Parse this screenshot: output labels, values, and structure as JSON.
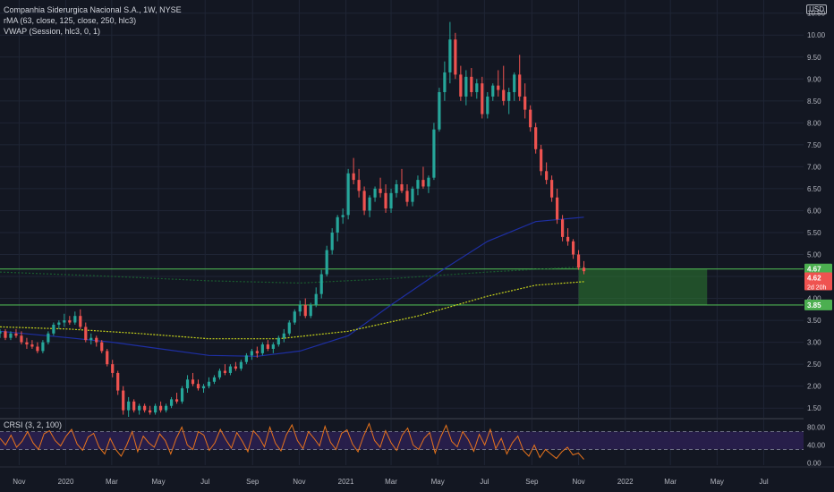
{
  "header": {
    "title": "Companhia Siderurgica Nacional S.A., 1W, NYSE",
    "indicator_rma": "rMA (63, close, 125, close, 250, hlc3)",
    "indicator_vwap": "VWAP (Session, hlc3, 0, 1)",
    "currency": "USD"
  },
  "crsi_panel": {
    "label": "CRSI (3, 2, 100)",
    "yticks": [
      "80.00",
      "40.00",
      "0.00"
    ],
    "upper_band": 70,
    "lower_band": 30
  },
  "price_labels": {
    "upper_level": "4.67",
    "last_price": "4.62",
    "countdown": "2d 20h",
    "lower_level": "3.85"
  },
  "colors": {
    "background": "#131722",
    "grid": "#1f2535",
    "up": "#26a69a",
    "down": "#ef5350",
    "level_line": "#4caf50",
    "zone_fill": "#2e7d32",
    "rma_fast": "#1e2fa3",
    "rma_slow": "#c6d31b",
    "crsi_line": "#e8731c",
    "crsi_band_fill": "#2a1f4f"
  },
  "chart_data": {
    "type": "candlestick",
    "title": "Companhia Siderurgica Nacional S.A., 1W, NYSE",
    "y_axis_ticks": [
      "10.50",
      "10.00",
      "9.50",
      "9.00",
      "8.50",
      "8.00",
      "7.50",
      "7.00",
      "6.50",
      "6.00",
      "5.50",
      "5.00",
      "4.50",
      "4.00",
      "3.50",
      "3.00",
      "2.50",
      "2.00",
      "1.50"
    ],
    "ylim": [
      1.3,
      10.8
    ],
    "x_axis_ticks": [
      "Nov",
      "2020",
      "Mar",
      "May",
      "Jul",
      "Sep",
      "Nov",
      "2021",
      "Mar",
      "May",
      "Jul",
      "Sep",
      "Nov",
      "2022",
      "Mar",
      "May",
      "Jul"
    ],
    "xlim": [
      "2019-10-07",
      "2022-08-22"
    ],
    "candles": [
      [
        "2019-10-07",
        3.2,
        3.3,
        3.1,
        3.25
      ],
      [
        "2019-10-14",
        3.25,
        3.3,
        3.05,
        3.1
      ],
      [
        "2019-10-21",
        3.1,
        3.25,
        3.05,
        3.2
      ],
      [
        "2019-10-28",
        3.2,
        3.3,
        3.1,
        3.15
      ],
      [
        "2019-11-04",
        3.15,
        3.25,
        2.95,
        3.0
      ],
      [
        "2019-11-11",
        3.0,
        3.1,
        2.85,
        2.95
      ],
      [
        "2019-11-18",
        2.95,
        3.05,
        2.85,
        2.9
      ],
      [
        "2019-11-25",
        2.9,
        3.0,
        2.75,
        2.8
      ],
      [
        "2019-12-02",
        2.8,
        3.05,
        2.75,
        3.0
      ],
      [
        "2019-12-09",
        3.0,
        3.25,
        2.95,
        3.2
      ],
      [
        "2019-12-16",
        3.2,
        3.45,
        3.15,
        3.4
      ],
      [
        "2019-12-23",
        3.4,
        3.5,
        3.3,
        3.45
      ],
      [
        "2019-12-30",
        3.45,
        3.65,
        3.35,
        3.5
      ],
      [
        "2020-01-06",
        3.5,
        3.6,
        3.4,
        3.45
      ],
      [
        "2020-01-13",
        3.45,
        3.7,
        3.4,
        3.6
      ],
      [
        "2020-01-20",
        3.6,
        3.75,
        3.3,
        3.35
      ],
      [
        "2020-01-27",
        3.35,
        3.45,
        3.0,
        3.05
      ],
      [
        "2020-02-03",
        3.05,
        3.2,
        2.95,
        3.1
      ],
      [
        "2020-02-10",
        3.1,
        3.15,
        2.9,
        3.0
      ],
      [
        "2020-02-17",
        3.0,
        3.05,
        2.75,
        2.8
      ],
      [
        "2020-02-24",
        2.8,
        2.85,
        2.45,
        2.5
      ],
      [
        "2020-03-02",
        2.5,
        2.6,
        2.2,
        2.3
      ],
      [
        "2020-03-09",
        2.3,
        2.35,
        1.8,
        1.9
      ],
      [
        "2020-03-16",
        1.9,
        2.0,
        1.35,
        1.45
      ],
      [
        "2020-03-23",
        1.45,
        1.75,
        1.3,
        1.65
      ],
      [
        "2020-03-30",
        1.65,
        1.7,
        1.4,
        1.45
      ],
      [
        "2020-04-06",
        1.45,
        1.6,
        1.35,
        1.55
      ],
      [
        "2020-04-13",
        1.55,
        1.6,
        1.4,
        1.45
      ],
      [
        "2020-04-20",
        1.45,
        1.55,
        1.35,
        1.4
      ],
      [
        "2020-04-27",
        1.4,
        1.6,
        1.35,
        1.55
      ],
      [
        "2020-05-04",
        1.55,
        1.65,
        1.4,
        1.45
      ],
      [
        "2020-05-11",
        1.45,
        1.6,
        1.4,
        1.55
      ],
      [
        "2020-05-18",
        1.55,
        1.75,
        1.5,
        1.7
      ],
      [
        "2020-05-25",
        1.7,
        1.85,
        1.6,
        1.65
      ],
      [
        "2020-06-01",
        1.65,
        2.0,
        1.6,
        1.95
      ],
      [
        "2020-06-08",
        1.95,
        2.25,
        1.85,
        2.15
      ],
      [
        "2020-06-15",
        2.15,
        2.3,
        2.0,
        2.05
      ],
      [
        "2020-06-22",
        2.05,
        2.15,
        1.9,
        1.95
      ],
      [
        "2020-06-29",
        1.95,
        2.05,
        1.85,
        2.0
      ],
      [
        "2020-07-06",
        2.0,
        2.2,
        1.95,
        2.1
      ],
      [
        "2020-07-13",
        2.1,
        2.25,
        2.05,
        2.2
      ],
      [
        "2020-07-20",
        2.2,
        2.4,
        2.15,
        2.35
      ],
      [
        "2020-07-27",
        2.35,
        2.5,
        2.25,
        2.3
      ],
      [
        "2020-08-03",
        2.3,
        2.5,
        2.25,
        2.45
      ],
      [
        "2020-08-10",
        2.45,
        2.55,
        2.35,
        2.4
      ],
      [
        "2020-08-17",
        2.4,
        2.6,
        2.35,
        2.55
      ],
      [
        "2020-08-24",
        2.55,
        2.75,
        2.5,
        2.7
      ],
      [
        "2020-08-31",
        2.7,
        2.85,
        2.6,
        2.8
      ],
      [
        "2020-09-07",
        2.8,
        2.9,
        2.65,
        2.75
      ],
      [
        "2020-09-14",
        2.75,
        3.0,
        2.7,
        2.95
      ],
      [
        "2020-09-21",
        2.95,
        3.05,
        2.8,
        2.85
      ],
      [
        "2020-09-28",
        2.85,
        3.0,
        2.75,
        2.95
      ],
      [
        "2020-10-05",
        2.95,
        3.15,
        2.9,
        3.1
      ],
      [
        "2020-10-12",
        3.1,
        3.3,
        3.0,
        3.2
      ],
      [
        "2020-10-19",
        3.2,
        3.5,
        3.15,
        3.45
      ],
      [
        "2020-10-26",
        3.45,
        3.75,
        3.4,
        3.7
      ],
      [
        "2020-11-02",
        3.7,
        3.95,
        3.6,
        3.85
      ],
      [
        "2020-11-09",
        3.85,
        4.0,
        3.55,
        3.6
      ],
      [
        "2020-11-16",
        3.6,
        3.9,
        3.55,
        3.85
      ],
      [
        "2020-11-23",
        3.85,
        4.25,
        3.8,
        4.1
      ],
      [
        "2020-11-30",
        4.1,
        4.65,
        4.0,
        4.55
      ],
      [
        "2020-12-07",
        4.55,
        5.2,
        4.5,
        5.1
      ],
      [
        "2020-12-14",
        5.1,
        5.6,
        5.0,
        5.5
      ],
      [
        "2020-12-21",
        5.5,
        5.9,
        5.3,
        5.85
      ],
      [
        "2020-12-28",
        5.85,
        6.05,
        5.7,
        5.9
      ],
      [
        "2021-01-04",
        5.9,
        6.95,
        5.8,
        6.85
      ],
      [
        "2021-01-11",
        6.85,
        7.2,
        6.6,
        6.7
      ],
      [
        "2021-01-18",
        6.7,
        6.95,
        6.3,
        6.45
      ],
      [
        "2021-01-25",
        6.45,
        6.55,
        5.9,
        6.0
      ],
      [
        "2021-02-01",
        6.0,
        6.35,
        5.85,
        6.3
      ],
      [
        "2021-02-08",
        6.3,
        6.55,
        6.2,
        6.5
      ],
      [
        "2021-02-15",
        6.5,
        6.75,
        6.3,
        6.4
      ],
      [
        "2021-02-22",
        6.4,
        6.6,
        5.95,
        6.05
      ],
      [
        "2021-03-01",
        6.05,
        6.5,
        5.95,
        6.4
      ],
      [
        "2021-03-08",
        6.4,
        6.7,
        6.3,
        6.6
      ],
      [
        "2021-03-15",
        6.6,
        6.95,
        6.4,
        6.45
      ],
      [
        "2021-03-22",
        6.45,
        6.6,
        6.1,
        6.2
      ],
      [
        "2021-03-29",
        6.2,
        6.55,
        6.1,
        6.5
      ],
      [
        "2021-04-05",
        6.5,
        6.8,
        6.35,
        6.7
      ],
      [
        "2021-04-12",
        6.7,
        7.0,
        6.5,
        6.55
      ],
      [
        "2021-04-19",
        6.55,
        6.8,
        6.4,
        6.75
      ],
      [
        "2021-04-26",
        6.75,
        8.0,
        6.7,
        7.85
      ],
      [
        "2021-05-03",
        7.85,
        8.8,
        7.8,
        8.7
      ],
      [
        "2021-05-10",
        8.7,
        9.4,
        8.5,
        9.15
      ],
      [
        "2021-05-17",
        9.15,
        10.3,
        8.9,
        9.9
      ],
      [
        "2021-05-24",
        9.9,
        10.05,
        9.0,
        9.1
      ],
      [
        "2021-05-31",
        9.1,
        9.3,
        8.5,
        8.6
      ],
      [
        "2021-06-07",
        8.6,
        9.2,
        8.4,
        9.05
      ],
      [
        "2021-06-14",
        9.05,
        9.25,
        8.6,
        8.7
      ],
      [
        "2021-06-21",
        8.7,
        9.0,
        8.55,
        8.9
      ],
      [
        "2021-06-28",
        8.9,
        9.05,
        8.1,
        8.2
      ],
      [
        "2021-07-05",
        8.2,
        8.7,
        8.1,
        8.6
      ],
      [
        "2021-07-12",
        8.6,
        8.9,
        8.5,
        8.85
      ],
      [
        "2021-07-19",
        8.85,
        9.2,
        8.6,
        8.75
      ],
      [
        "2021-07-26",
        8.75,
        9.3,
        8.4,
        8.5
      ],
      [
        "2021-08-02",
        8.5,
        8.8,
        8.2,
        8.7
      ],
      [
        "2021-08-09",
        8.7,
        9.15,
        8.5,
        9.1
      ],
      [
        "2021-08-16",
        9.1,
        9.55,
        8.5,
        8.6
      ],
      [
        "2021-08-23",
        8.6,
        8.9,
        8.1,
        8.3
      ],
      [
        "2021-08-30",
        8.3,
        8.4,
        7.8,
        7.9
      ],
      [
        "2021-09-06",
        7.9,
        8.0,
        7.3,
        7.4
      ],
      [
        "2021-09-13",
        7.4,
        7.5,
        6.8,
        6.9
      ],
      [
        "2021-09-20",
        6.9,
        7.1,
        6.6,
        6.7
      ],
      [
        "2021-09-27",
        6.7,
        6.8,
        6.2,
        6.3
      ],
      [
        "2021-10-04",
        6.3,
        6.5,
        5.7,
        5.8
      ],
      [
        "2021-10-11",
        5.8,
        5.9,
        5.3,
        5.4
      ],
      [
        "2021-10-18",
        5.4,
        5.6,
        5.2,
        5.3
      ],
      [
        "2021-10-25",
        5.3,
        5.35,
        4.9,
        5.0
      ],
      [
        "2021-11-01",
        5.0,
        5.1,
        4.65,
        4.7
      ],
      [
        "2021-11-08",
        4.7,
        4.85,
        4.55,
        4.62
      ]
    ],
    "series": [
      {
        "name": "rMA 63",
        "color": "#1e2fa3",
        "points": [
          [
            "2019-10-07",
            3.25
          ],
          [
            "2020-01-06",
            3.1
          ],
          [
            "2020-03-02",
            3.0
          ],
          [
            "2020-05-04",
            2.85
          ],
          [
            "2020-07-06",
            2.7
          ],
          [
            "2020-09-07",
            2.68
          ],
          [
            "2020-11-02",
            2.8
          ],
          [
            "2021-01-04",
            3.15
          ],
          [
            "2021-03-01",
            3.85
          ],
          [
            "2021-05-03",
            4.6
          ],
          [
            "2021-07-05",
            5.3
          ],
          [
            "2021-09-06",
            5.75
          ],
          [
            "2021-11-08",
            5.85
          ]
        ]
      },
      {
        "name": "rMA 125",
        "color": "#1a5c2f",
        "points": [
          [
            "2019-10-07",
            4.6
          ],
          [
            "2020-03-02",
            4.5
          ],
          [
            "2020-07-06",
            4.4
          ],
          [
            "2020-11-02",
            4.35
          ],
          [
            "2021-03-01",
            4.45
          ],
          [
            "2021-07-05",
            4.6
          ],
          [
            "2021-11-08",
            4.72
          ]
        ]
      },
      {
        "name": "rMA 250",
        "color": "#c6d31b",
        "points": [
          [
            "2019-10-07",
            3.35
          ],
          [
            "2020-01-06",
            3.3
          ],
          [
            "2020-04-06",
            3.2
          ],
          [
            "2020-07-06",
            3.08
          ],
          [
            "2020-10-05",
            3.08
          ],
          [
            "2021-01-04",
            3.25
          ],
          [
            "2021-04-05",
            3.6
          ],
          [
            "2021-07-05",
            4.05
          ],
          [
            "2021-09-06",
            4.3
          ],
          [
            "2021-11-08",
            4.38
          ]
        ]
      }
    ],
    "levels": [
      4.67,
      3.85
    ],
    "zone": {
      "from_date": "2021-11-01",
      "to_date": "2022-04-18",
      "y_top": 4.67,
      "y_bottom": 3.85
    }
  },
  "crsi_data": {
    "ylim": [
      -5,
      95
    ],
    "values": [
      55,
      40,
      62,
      35,
      48,
      70,
      45,
      30,
      65,
      72,
      50,
      38,
      60,
      75,
      42,
      28,
      58,
      66,
      35,
      20,
      55,
      30,
      15,
      40,
      70,
      25,
      60,
      45,
      35,
      65,
      50,
      20,
      55,
      80,
      40,
      30,
      70,
      62,
      28,
      45,
      75,
      52,
      33,
      68,
      48,
      25,
      72,
      58,
      36,
      80,
      44,
      27,
      63,
      85,
      50,
      32,
      70,
      55,
      38,
      82,
      46,
      30,
      66,
      74,
      42,
      25,
      60,
      88,
      50,
      35,
      72,
      45,
      28,
      62,
      78,
      40,
      30,
      55,
      68,
      22,
      58,
      84,
      48,
      36,
      70,
      52,
      26,
      64,
      40,
      75,
      32,
      55,
      20,
      45,
      60,
      28,
      15,
      40,
      12,
      30,
      20,
      10,
      25,
      35,
      18,
      22,
      8
    ]
  }
}
